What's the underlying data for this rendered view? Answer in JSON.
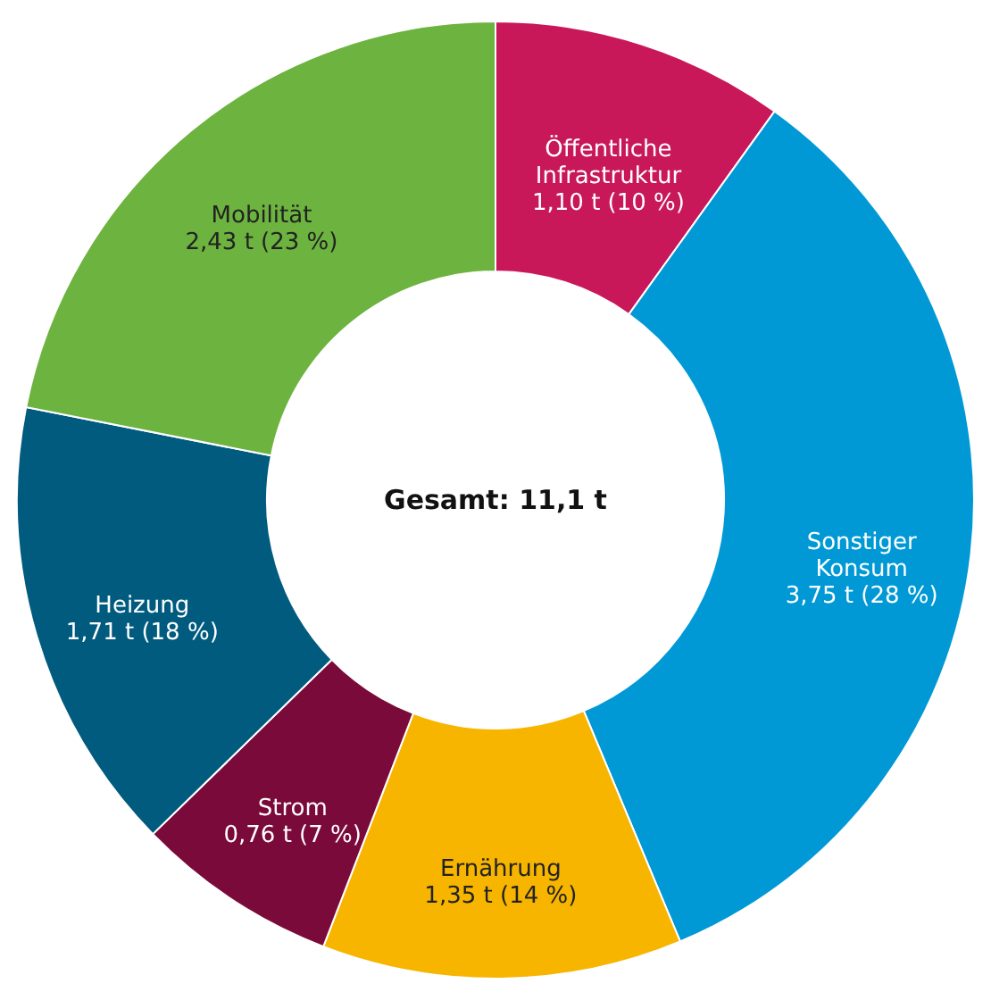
{
  "chart_data": {
    "type": "donut",
    "categories": [
      "Öffentliche\nInfrastruktur",
      "Sonstiger\nKonsum",
      "Ernährung",
      "Strom",
      "Heizung",
      "Mobilität"
    ],
    "values": [
      1.1,
      3.75,
      1.35,
      0.76,
      1.71,
      2.43
    ],
    "value_labels": [
      "1,10 t (10 %)",
      "3,75 t (28 %)",
      "1,35 t (14 %)",
      "0,76 t (7 %)",
      "1,71 t (18 %)",
      "2,43 t (23 %)"
    ],
    "colors": [
      "#c8185a",
      "#0099d6",
      "#f7b500",
      "#7a0a3a",
      "#005b7f",
      "#6cb33f"
    ],
    "annotations": [
      "Gesamt: 11,1 t"
    ],
    "legend": false
  }
}
